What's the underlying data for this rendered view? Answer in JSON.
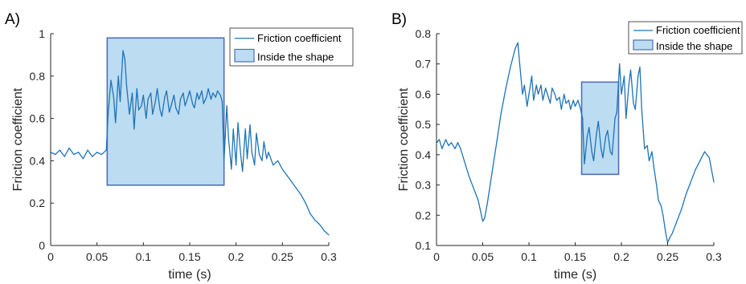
{
  "chart_data": [
    {
      "panel_label": "A)",
      "type": "line",
      "xlabel": "time (s)",
      "ylabel": "Friction coefficient",
      "xlim": [
        0,
        0.3
      ],
      "ylim": [
        0,
        1
      ],
      "xticks": [
        "0",
        "0.05",
        "0.1",
        "0.15",
        "0.2",
        "0.25",
        "0.3"
      ],
      "yticks": [
        "0",
        "0.2",
        "0.4",
        "0.6",
        "0.8",
        "1"
      ],
      "legend": {
        "line": "Friction coefficient",
        "box": "Inside the shape"
      },
      "legend_position": "top-right",
      "line_color": "#1f73b7",
      "box_fill": "#bcdcf2",
      "box_edge": "#4f6fb5",
      "shape_region": {
        "x": [
          0.061,
          0.187
        ],
        "y": [
          0.285,
          0.98
        ]
      },
      "series": [
        {
          "name": "Friction coefficient",
          "x": [
            0,
            0.005,
            0.01,
            0.015,
            0.02,
            0.025,
            0.03,
            0.035,
            0.04,
            0.045,
            0.05,
            0.055,
            0.06,
            0.062,
            0.065,
            0.068,
            0.07,
            0.073,
            0.075,
            0.078,
            0.08,
            0.082,
            0.085,
            0.088,
            0.09,
            0.093,
            0.095,
            0.098,
            0.1,
            0.103,
            0.105,
            0.108,
            0.11,
            0.113,
            0.115,
            0.118,
            0.12,
            0.123,
            0.125,
            0.128,
            0.13,
            0.133,
            0.135,
            0.138,
            0.14,
            0.143,
            0.145,
            0.148,
            0.15,
            0.153,
            0.155,
            0.158,
            0.16,
            0.163,
            0.165,
            0.168,
            0.17,
            0.173,
            0.175,
            0.178,
            0.18,
            0.183,
            0.185,
            0.187,
            0.19,
            0.192,
            0.195,
            0.197,
            0.2,
            0.202,
            0.205,
            0.207,
            0.21,
            0.212,
            0.215,
            0.217,
            0.22,
            0.222,
            0.225,
            0.228,
            0.23,
            0.233,
            0.235,
            0.24,
            0.245,
            0.25,
            0.255,
            0.26,
            0.265,
            0.27,
            0.275,
            0.28,
            0.285,
            0.29,
            0.295,
            0.3
          ],
          "y": [
            0.44,
            0.43,
            0.45,
            0.42,
            0.46,
            0.43,
            0.44,
            0.41,
            0.45,
            0.42,
            0.44,
            0.43,
            0.45,
            0.62,
            0.78,
            0.7,
            0.58,
            0.8,
            0.68,
            0.92,
            0.88,
            0.75,
            0.62,
            0.72,
            0.55,
            0.74,
            0.64,
            0.66,
            0.71,
            0.6,
            0.69,
            0.72,
            0.62,
            0.68,
            0.74,
            0.64,
            0.61,
            0.7,
            0.73,
            0.63,
            0.66,
            0.71,
            0.65,
            0.62,
            0.69,
            0.72,
            0.66,
            0.7,
            0.73,
            0.67,
            0.65,
            0.72,
            0.69,
            0.73,
            0.67,
            0.7,
            0.74,
            0.69,
            0.72,
            0.7,
            0.73,
            0.71,
            0.68,
            0.4,
            0.66,
            0.5,
            0.36,
            0.55,
            0.38,
            0.58,
            0.43,
            0.35,
            0.55,
            0.41,
            0.57,
            0.44,
            0.38,
            0.53,
            0.43,
            0.4,
            0.49,
            0.41,
            0.44,
            0.38,
            0.4,
            0.36,
            0.33,
            0.3,
            0.27,
            0.24,
            0.2,
            0.15,
            0.12,
            0.1,
            0.07,
            0.05
          ]
        }
      ]
    },
    {
      "panel_label": "B)",
      "type": "line",
      "xlabel": "time (s)",
      "ylabel": "Friction coefficient",
      "xlim": [
        0,
        0.3
      ],
      "ylim": [
        0.1,
        0.8
      ],
      "xticks": [
        "0",
        "0.05",
        "0.1",
        "0.15",
        "0.2",
        "0.25",
        "0.3"
      ],
      "yticks": [
        "0.1",
        "0.2",
        "0.3",
        "0.4",
        "0.5",
        "0.6",
        "0.7",
        "0.8"
      ],
      "legend": {
        "line": "Friction coefficient",
        "box": "Inside the shape"
      },
      "legend_position": "top-right",
      "line_color": "#1f73b7",
      "box_fill": "#bcdcf2",
      "box_edge": "#4f6fb5",
      "shape_region": {
        "x": [
          0.157,
          0.197
        ],
        "y": [
          0.335,
          0.64
        ]
      },
      "series": [
        {
          "name": "Friction coefficient",
          "x": [
            0,
            0.003,
            0.006,
            0.01,
            0.013,
            0.016,
            0.02,
            0.023,
            0.026,
            0.03,
            0.035,
            0.04,
            0.045,
            0.05,
            0.052,
            0.055,
            0.06,
            0.065,
            0.07,
            0.075,
            0.08,
            0.085,
            0.088,
            0.09,
            0.093,
            0.095,
            0.098,
            0.1,
            0.103,
            0.105,
            0.108,
            0.11,
            0.113,
            0.115,
            0.118,
            0.12,
            0.123,
            0.125,
            0.128,
            0.13,
            0.133,
            0.135,
            0.138,
            0.14,
            0.143,
            0.145,
            0.148,
            0.15,
            0.153,
            0.155,
            0.158,
            0.16,
            0.163,
            0.165,
            0.168,
            0.17,
            0.173,
            0.175,
            0.178,
            0.18,
            0.183,
            0.185,
            0.188,
            0.19,
            0.193,
            0.195,
            0.198,
            0.2,
            0.203,
            0.205,
            0.208,
            0.21,
            0.213,
            0.215,
            0.218,
            0.22,
            0.222,
            0.225,
            0.228,
            0.23,
            0.233,
            0.235,
            0.238,
            0.24,
            0.243,
            0.245,
            0.248,
            0.25,
            0.253,
            0.255,
            0.26,
            0.265,
            0.27,
            0.275,
            0.28,
            0.285,
            0.29,
            0.295,
            0.3
          ],
          "y": [
            0.44,
            0.45,
            0.42,
            0.45,
            0.43,
            0.44,
            0.42,
            0.44,
            0.42,
            0.38,
            0.33,
            0.29,
            0.25,
            0.18,
            0.19,
            0.24,
            0.34,
            0.44,
            0.54,
            0.62,
            0.69,
            0.75,
            0.77,
            0.7,
            0.6,
            0.63,
            0.56,
            0.6,
            0.66,
            0.58,
            0.63,
            0.6,
            0.63,
            0.58,
            0.62,
            0.6,
            0.57,
            0.62,
            0.6,
            0.58,
            0.59,
            0.55,
            0.6,
            0.57,
            0.58,
            0.55,
            0.58,
            0.56,
            0.58,
            0.56,
            0.52,
            0.37,
            0.46,
            0.49,
            0.41,
            0.38,
            0.47,
            0.51,
            0.42,
            0.39,
            0.46,
            0.48,
            0.41,
            0.4,
            0.52,
            0.54,
            0.7,
            0.6,
            0.66,
            0.52,
            0.63,
            0.68,
            0.57,
            0.55,
            0.66,
            0.69,
            0.55,
            0.42,
            0.43,
            0.38,
            0.41,
            0.36,
            0.3,
            0.25,
            0.23,
            0.2,
            0.14,
            0.11,
            0.13,
            0.14,
            0.18,
            0.22,
            0.27,
            0.31,
            0.35,
            0.38,
            0.41,
            0.39,
            0.31
          ]
        }
      ]
    }
  ]
}
